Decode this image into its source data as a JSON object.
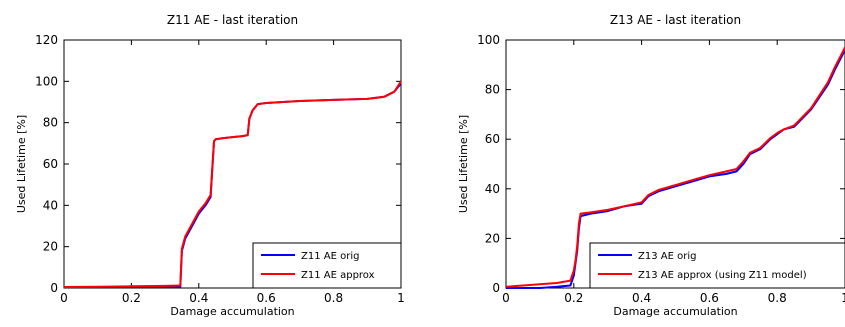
{
  "chart_data": [
    {
      "type": "line",
      "title": "Z11 AE - last iteration",
      "xlabel": "Damage accumulation",
      "ylabel": "Used Lifetime [%]",
      "xlim": [
        0,
        1
      ],
      "ylim": [
        0,
        120
      ],
      "xticks": [
        "0",
        "0.2",
        "0.4",
        "0.6",
        "0.8",
        "1"
      ],
      "yticks": [
        "0",
        "20",
        "40",
        "60",
        "80",
        "100",
        "120"
      ],
      "grid": false,
      "legend": "bottom-right",
      "series": [
        {
          "name": "Z11 AE orig",
          "color": "#0000ff",
          "x": [
            0,
            0.1,
            0.2,
            0.3,
            0.345,
            0.35,
            0.36,
            0.38,
            0.4,
            0.42,
            0.435,
            0.445,
            0.45,
            0.47,
            0.5,
            0.53,
            0.545,
            0.55,
            0.56,
            0.575,
            0.6,
            0.65,
            0.7,
            0.8,
            0.9,
            0.95,
            0.98,
            1.0
          ],
          "y": [
            0.5,
            0.5,
            0.5,
            0.5,
            0.5,
            18,
            24,
            30,
            36,
            40,
            44,
            71,
            72,
            72.5,
            73,
            73.5,
            74,
            82,
            86,
            89,
            89.5,
            90,
            90.5,
            91,
            91.5,
            92.5,
            95,
            99
          ]
        },
        {
          "name": "Z11 AE approx",
          "color": "#ff0000",
          "x": [
            0,
            0.1,
            0.2,
            0.3,
            0.345,
            0.35,
            0.36,
            0.38,
            0.4,
            0.42,
            0.435,
            0.445,
            0.45,
            0.47,
            0.5,
            0.53,
            0.545,
            0.55,
            0.56,
            0.575,
            0.6,
            0.65,
            0.7,
            0.8,
            0.9,
            0.95,
            0.98,
            1.0
          ],
          "y": [
            0.5,
            0.6,
            0.8,
            1,
            1.2,
            19,
            25,
            31,
            37,
            41,
            45,
            71,
            72,
            72.5,
            73,
            73.5,
            74,
            82,
            86,
            89,
            89.5,
            90,
            90.5,
            91,
            91.5,
            92.5,
            95,
            100
          ]
        }
      ]
    },
    {
      "type": "line",
      "title": "Z13 AE - last iteration",
      "xlabel": "Damage accumulation",
      "ylabel": "Used Lifetime [%]",
      "xlim": [
        0,
        1
      ],
      "ylim": [
        0,
        100
      ],
      "xticks": [
        "0",
        "0.2",
        "0.4",
        "0.6",
        "0.8",
        "1"
      ],
      "yticks": [
        "0",
        "20",
        "40",
        "60",
        "80",
        "100"
      ],
      "grid": false,
      "legend": "bottom-right",
      "series": [
        {
          "name": "Z13 AE orig",
          "color": "#0000ff",
          "x": [
            0,
            0.05,
            0.1,
            0.15,
            0.19,
            0.2,
            0.205,
            0.21,
            0.215,
            0.22,
            0.25,
            0.3,
            0.35,
            0.4,
            0.42,
            0.45,
            0.5,
            0.55,
            0.6,
            0.65,
            0.68,
            0.7,
            0.72,
            0.75,
            0.78,
            0.8,
            0.82,
            0.85,
            0.9,
            0.95,
            0.97,
            1.0
          ],
          "y": [
            0,
            0,
            0,
            0.5,
            1,
            5,
            10,
            15,
            24,
            29,
            30,
            31,
            33,
            34,
            37,
            39,
            41,
            43,
            45,
            46,
            47,
            50,
            54,
            56,
            60,
            62,
            64,
            65,
            72,
            82,
            88,
            96
          ]
        },
        {
          "name": "Z13 AE approx (using Z11 model)",
          "color": "#ff0000",
          "x": [
            0,
            0.05,
            0.1,
            0.15,
            0.19,
            0.2,
            0.205,
            0.21,
            0.215,
            0.22,
            0.25,
            0.3,
            0.35,
            0.4,
            0.42,
            0.45,
            0.5,
            0.55,
            0.6,
            0.65,
            0.68,
            0.7,
            0.72,
            0.75,
            0.78,
            0.8,
            0.82,
            0.85,
            0.9,
            0.95,
            0.97,
            1.0
          ],
          "y": [
            0.5,
            1,
            1.5,
            2,
            3,
            7,
            11,
            17,
            26,
            30,
            30.5,
            31.5,
            33,
            34.5,
            37.5,
            39.5,
            41.5,
            43.5,
            45.5,
            47,
            48,
            51,
            54.5,
            56.5,
            60.5,
            62.5,
            64,
            65.5,
            72.5,
            83,
            89,
            97
          ]
        }
      ]
    }
  ]
}
